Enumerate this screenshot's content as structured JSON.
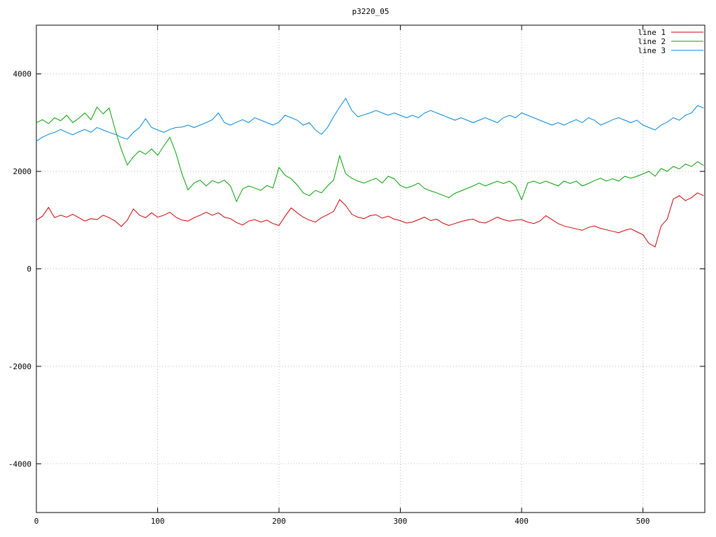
{
  "title": "p3220_05",
  "colors": {
    "background": "#ffffff",
    "border": "#000000",
    "grid": "#b8b8b8",
    "text": "#000000"
  },
  "chart_data": {
    "type": "line",
    "title": "p3220_05",
    "xlabel": "",
    "ylabel": "",
    "xlim": [
      0,
      551
    ],
    "ylim": [
      -5000,
      5000
    ],
    "x_ticks": [
      0,
      100,
      200,
      300,
      400,
      500
    ],
    "y_ticks": [
      -4000,
      -2000,
      0,
      2000,
      4000
    ],
    "grid": true,
    "legend_position": "top-right",
    "x_start": 0,
    "x_step": 5,
    "series": [
      {
        "name": "line 1",
        "color": "#d00000",
        "values": [
          1000,
          1080,
          1260,
          1050,
          1100,
          1060,
          1120,
          1050,
          980,
          1030,
          1010,
          1100,
          1050,
          980,
          870,
          1000,
          1230,
          1100,
          1050,
          1150,
          1060,
          1100,
          1160,
          1060,
          1000,
          980,
          1050,
          1100,
          1160,
          1100,
          1150,
          1060,
          1030,
          950,
          900,
          980,
          1010,
          960,
          1000,
          930,
          890,
          1080,
          1250,
          1150,
          1060,
          1000,
          960,
          1050,
          1110,
          1180,
          1420,
          1300,
          1120,
          1060,
          1030,
          1090,
          1110,
          1040,
          1080,
          1020,
          990,
          940,
          960,
          1010,
          1060,
          990,
          1020,
          940,
          890,
          930,
          970,
          1000,
          1020,
          960,
          940,
          1000,
          1060,
          1010,
          980,
          1000,
          1010,
          960,
          930,
          980,
          1090,
          1010,
          930,
          880,
          850,
          820,
          790,
          850,
          880,
          830,
          800,
          770,
          740,
          790,
          820,
          760,
          700,
          520,
          450,
          880,
          1020,
          1430,
          1500,
          1400,
          1460,
          1560,
          1500
        ]
      },
      {
        "name": "line 2",
        "color": "#00a000",
        "values": [
          3000,
          3060,
          2980,
          3100,
          3040,
          3150,
          3000,
          3090,
          3200,
          3060,
          3320,
          3180,
          3300,
          2850,
          2450,
          2130,
          2300,
          2420,
          2350,
          2460,
          2330,
          2520,
          2700,
          2380,
          1950,
          1620,
          1760,
          1820,
          1700,
          1810,
          1760,
          1820,
          1700,
          1380,
          1640,
          1700,
          1660,
          1610,
          1710,
          1660,
          2080,
          1920,
          1850,
          1720,
          1560,
          1500,
          1610,
          1560,
          1700,
          1820,
          2320,
          1950,
          1860,
          1800,
          1760,
          1810,
          1860,
          1760,
          1900,
          1850,
          1710,
          1660,
          1700,
          1760,
          1650,
          1600,
          1560,
          1510,
          1460,
          1550,
          1600,
          1650,
          1700,
          1760,
          1700,
          1750,
          1800,
          1750,
          1800,
          1700,
          1420,
          1760,
          1800,
          1750,
          1800,
          1750,
          1700,
          1800,
          1750,
          1800,
          1700,
          1750,
          1810,
          1860,
          1800,
          1850,
          1800,
          1900,
          1860,
          1900,
          1950,
          2000,
          1900,
          2060,
          2000,
          2100,
          2050,
          2150,
          2100,
          2200,
          2120
        ]
      },
      {
        "name": "line 3",
        "color": "#0087e0",
        "values": [
          2620,
          2700,
          2760,
          2800,
          2860,
          2800,
          2750,
          2810,
          2860,
          2800,
          2900,
          2850,
          2800,
          2760,
          2700,
          2660,
          2800,
          2900,
          3080,
          2900,
          2850,
          2800,
          2860,
          2900,
          2910,
          2950,
          2900,
          2950,
          3000,
          3060,
          3200,
          3000,
          2950,
          3010,
          3060,
          3000,
          3100,
          3050,
          3000,
          2950,
          3010,
          3150,
          3100,
          3050,
          2950,
          3000,
          2850,
          2760,
          2900,
          3120,
          3320,
          3500,
          3250,
          3120,
          3160,
          3200,
          3250,
          3200,
          3150,
          3200,
          3150,
          3100,
          3150,
          3100,
          3200,
          3250,
          3200,
          3150,
          3100,
          3050,
          3100,
          3050,
          3000,
          3050,
          3100,
          3050,
          3000,
          3100,
          3150,
          3100,
          3200,
          3150,
          3100,
          3050,
          3000,
          2950,
          3000,
          2950,
          3010,
          3060,
          3000,
          3100,
          3050,
          2950,
          3000,
          3060,
          3100,
          3050,
          3000,
          3050,
          2950,
          2900,
          2850,
          2950,
          3010,
          3100,
          3050,
          3150,
          3200,
          3350,
          3300
        ]
      }
    ]
  }
}
